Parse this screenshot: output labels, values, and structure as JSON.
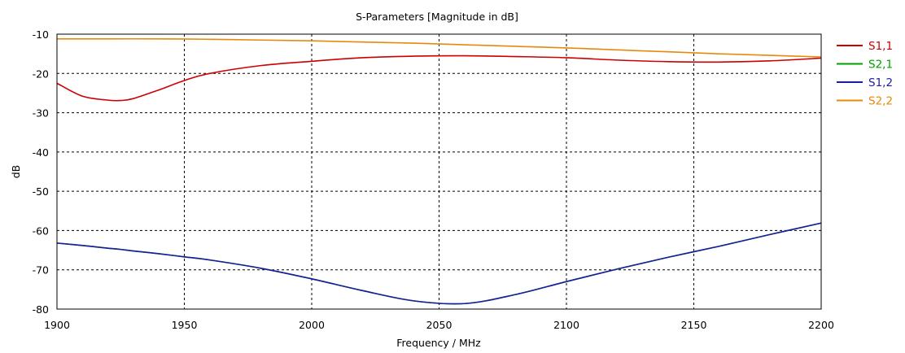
{
  "chart_data": {
    "type": "line",
    "title": "S-Parameters [Magnitude in dB]",
    "xlabel": "Frequency / MHz",
    "ylabel": "dB",
    "xlim": [
      1900,
      2200
    ],
    "ylim": [
      -80,
      -10
    ],
    "x_ticks": [
      "1900",
      "1950",
      "2000",
      "2050",
      "2100",
      "2150",
      "2200"
    ],
    "y_ticks": [
      "-10",
      "-20",
      "-30",
      "-40",
      "-50",
      "-60",
      "-70",
      "-80"
    ],
    "grid": true,
    "legend_position": "right",
    "series": [
      {
        "name": "S1,1",
        "color": "#cc0000",
        "x": [
          1900,
          1910,
          1920,
          1925,
          1930,
          1940,
          1950,
          1960,
          1980,
          2000,
          2020,
          2040,
          2060,
          2080,
          2100,
          2120,
          2140,
          2160,
          2180,
          2200
        ],
        "y": [
          -22.5,
          -25.8,
          -26.8,
          -26.9,
          -26.4,
          -24.2,
          -21.8,
          -20.0,
          -18.0,
          -16.9,
          -16.0,
          -15.6,
          -15.5,
          -15.7,
          -16.0,
          -16.6,
          -17.0,
          -17.1,
          -16.8,
          -16.1
        ]
      },
      {
        "name": "S2,1",
        "color": "#00a000",
        "x": [
          1900,
          1910,
          1920,
          1925,
          1930,
          1940,
          1950,
          1960,
          1980,
          2000,
          2020,
          2040,
          2060,
          2080,
          2100,
          2120,
          2140,
          2160,
          2180,
          2200
        ],
        "y": [
          -63.2,
          -63.8,
          -64.5,
          -64.8,
          -65.2,
          -65.9,
          -66.7,
          -67.5,
          -69.6,
          -72.3,
          -75.3,
          -77.9,
          -78.6,
          -76.3,
          -73.0,
          -69.8,
          -66.8,
          -64.0,
          -61.0,
          -58.1
        ]
      },
      {
        "name": "S1,2",
        "color": "#1c1ca0",
        "x": [
          1900,
          1910,
          1920,
          1925,
          1930,
          1940,
          1950,
          1960,
          1980,
          2000,
          2020,
          2040,
          2060,
          2080,
          2100,
          2120,
          2140,
          2160,
          2180,
          2200
        ],
        "y": [
          -63.2,
          -63.8,
          -64.5,
          -64.8,
          -65.2,
          -65.9,
          -66.7,
          -67.5,
          -69.6,
          -72.3,
          -75.3,
          -77.9,
          -78.6,
          -76.3,
          -73.0,
          -69.8,
          -66.8,
          -64.0,
          -61.0,
          -58.1
        ]
      },
      {
        "name": "S2,2",
        "color": "#e8890c",
        "x": [
          1900,
          1920,
          1940,
          1960,
          1980,
          2000,
          2020,
          2040,
          2060,
          2080,
          2100,
          2120,
          2140,
          2160,
          2180,
          2200
        ],
        "y": [
          -11.2,
          -11.2,
          -11.2,
          -11.3,
          -11.5,
          -11.7,
          -12.0,
          -12.3,
          -12.7,
          -13.1,
          -13.5,
          -14.0,
          -14.5,
          -15.0,
          -15.4,
          -15.8
        ]
      }
    ]
  }
}
